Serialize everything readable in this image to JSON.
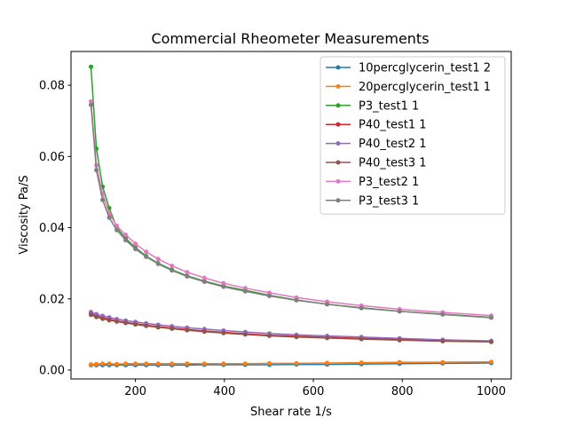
{
  "chart_data": {
    "type": "line",
    "title": "Commercial Rheometer Measurements",
    "xlabel": "Shear rate 1/s",
    "ylabel": "Viscosity Pa/S",
    "xlim": [
      55,
      1045
    ],
    "ylim": [
      -0.0025,
      0.0895
    ],
    "xticks": [
      200,
      400,
      600,
      800,
      1000
    ],
    "yticks": [
      0.0,
      0.02,
      0.04,
      0.06,
      0.08
    ],
    "ytick_labels": [
      "0.00",
      "0.02",
      "0.04",
      "0.06",
      "0.08"
    ],
    "legend_position": "top-right",
    "grid": false,
    "x": [
      100,
      112,
      126,
      141,
      158,
      178,
      200,
      224,
      251,
      282,
      316,
      355,
      398,
      447,
      501,
      562,
      631,
      708,
      794,
      891,
      1000
    ],
    "series": [
      {
        "name": "10percglycerin_test1 2",
        "color": "#1f77b4",
        "values": [
          0.0014,
          0.0014,
          0.0014,
          0.0014,
          0.0014,
          0.0014,
          0.0014,
          0.0014,
          0.0014,
          0.0014,
          0.0014,
          0.0015,
          0.0015,
          0.0015,
          0.0015,
          0.0016,
          0.0016,
          0.0017,
          0.0018,
          0.0019,
          0.002
        ]
      },
      {
        "name": "20percglycerin_test1 1",
        "color": "#ff7f0e",
        "values": [
          0.0016,
          0.0017,
          0.0018,
          0.0018,
          0.0017,
          0.0018,
          0.0018,
          0.0018,
          0.0018,
          0.0018,
          0.0018,
          0.0018,
          0.0018,
          0.0018,
          0.0019,
          0.0019,
          0.002,
          0.0021,
          0.0022,
          0.0022,
          0.0023
        ]
      },
      {
        "name": "P3_test1 1",
        "color": "#2ca02c",
        "values": [
          0.0852,
          0.0622,
          0.0515,
          0.0455,
          0.04,
          0.037,
          0.0344,
          0.032,
          0.03,
          0.0282,
          0.0265,
          0.025,
          0.0236,
          0.0224,
          0.021,
          0.0197,
          0.0185,
          0.0175,
          0.0165,
          0.0157,
          0.0148
        ]
      },
      {
        "name": "P40_test1 1",
        "color": "#d62728",
        "values": [
          0.0158,
          0.0152,
          0.0147,
          0.0143,
          0.0138,
          0.0134,
          0.013,
          0.0126,
          0.0122,
          0.0118,
          0.0114,
          0.011,
          0.0106,
          0.0102,
          0.0098,
          0.0095,
          0.0092,
          0.0089,
          0.0086,
          0.0083,
          0.008
        ]
      },
      {
        "name": "P40_test2 1",
        "color": "#9467bd",
        "values": [
          0.0163,
          0.0157,
          0.0152,
          0.0148,
          0.0143,
          0.0139,
          0.0135,
          0.0131,
          0.0127,
          0.0123,
          0.0119,
          0.0115,
          0.0111,
          0.0107,
          0.0103,
          0.0099,
          0.0096,
          0.0093,
          0.0089,
          0.0085,
          0.0082
        ]
      },
      {
        "name": "P40_test3 1",
        "color": "#8c564b",
        "values": [
          0.0155,
          0.0149,
          0.0144,
          0.014,
          0.0136,
          0.0132,
          0.0128,
          0.0124,
          0.012,
          0.0116,
          0.0112,
          0.0108,
          0.0104,
          0.01,
          0.0096,
          0.0093,
          0.009,
          0.0087,
          0.0084,
          0.0081,
          0.0079
        ]
      },
      {
        "name": "P3_test2 1",
        "color": "#e377c2",
        "values": [
          0.0755,
          0.0575,
          0.0495,
          0.044,
          0.0405,
          0.038,
          0.0355,
          0.0332,
          0.0312,
          0.0293,
          0.0275,
          0.0259,
          0.0244,
          0.023,
          0.0217,
          0.0204,
          0.0192,
          0.0181,
          0.0171,
          0.0162,
          0.0153
        ]
      },
      {
        "name": "P3_test3 1",
        "color": "#7f7f7f",
        "values": [
          0.0745,
          0.0562,
          0.0478,
          0.0428,
          0.0393,
          0.0365,
          0.034,
          0.0318,
          0.0298,
          0.028,
          0.0263,
          0.0248,
          0.0234,
          0.0221,
          0.0208,
          0.0196,
          0.0185,
          0.0174,
          0.0165,
          0.0156,
          0.0147
        ]
      }
    ]
  }
}
